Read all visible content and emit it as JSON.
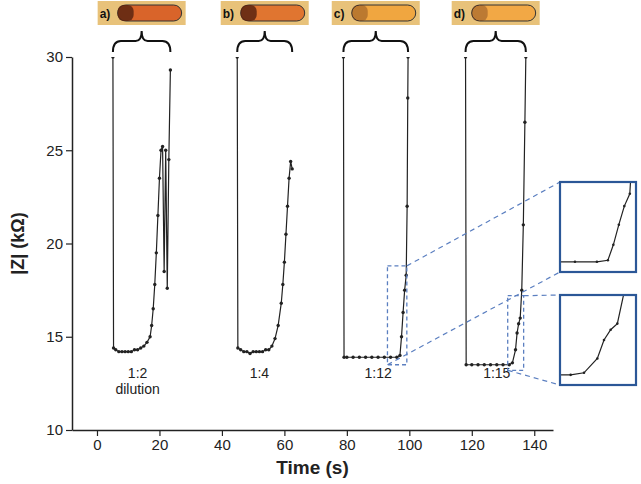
{
  "chart_data": {
    "type": "line",
    "x_label": "Time (s)",
    "y_label": "|Z| (kΩ)",
    "xlim": [
      -8,
      146
    ],
    "ylim": [
      10,
      30
    ],
    "xticks": [
      0,
      20,
      40,
      60,
      80,
      100,
      120,
      140
    ],
    "yticks": [
      10,
      15,
      20,
      25,
      30
    ],
    "grid": false,
    "color": "#222222",
    "marker": "circle",
    "line_style": "solid",
    "x": [
      5.1,
      5.3,
      6,
      7,
      8,
      9,
      10,
      11,
      12,
      13,
      14,
      15,
      16,
      17,
      17.5,
      18,
      18.5,
      19,
      19.5,
      20,
      20.5,
      21,
      21.5,
      22,
      22.5,
      23,
      23.5,
      null,
      44.9,
      45.1,
      46,
      47,
      48,
      49,
      50,
      51,
      52,
      53,
      54,
      55,
      56,
      57,
      58,
      59,
      59.5,
      60,
      60.5,
      61,
      61.5,
      62,
      62.5,
      null,
      78.9,
      79.1,
      80,
      82,
      84,
      86,
      88,
      90,
      92,
      94,
      96,
      97,
      97.5,
      98,
      98.5,
      99,
      99.3,
      99.5,
      99.6,
      null,
      118,
      118.2,
      120,
      122,
      124,
      126,
      128,
      130,
      132,
      133,
      134,
      134.5,
      135,
      135.5,
      136,
      136.5,
      137,
      137.3
    ],
    "values": [
      30,
      14.4,
      14.3,
      14.2,
      14.2,
      14.2,
      14.2,
      14.2,
      14.3,
      14.3,
      14.4,
      14.5,
      14.7,
      15.0,
      15.6,
      16.5,
      17.8,
      19.5,
      21.5,
      23.5,
      25.0,
      25.2,
      18.5,
      25.0,
      17.6,
      24.5,
      29.3,
      null,
      30,
      14.4,
      14.3,
      14.2,
      14.2,
      14.1,
      14.2,
      14.2,
      14.2,
      14.2,
      14.3,
      14.3,
      14.5,
      14.9,
      15.6,
      16.8,
      17.8,
      19.0,
      20.5,
      22.0,
      23.5,
      24.4,
      24.0,
      null,
      30,
      13.9,
      13.9,
      13.9,
      13.9,
      13.9,
      13.9,
      13.9,
      13.9,
      13.9,
      13.9,
      14.0,
      15.0,
      16.3,
      17.5,
      18.3,
      22.0,
      27.8,
      30,
      null,
      30,
      13.5,
      13.5,
      13.5,
      13.5,
      13.5,
      13.5,
      13.5,
      13.5,
      13.6,
      14.3,
      15.2,
      15.7,
      16.0,
      17.5,
      21.0,
      26.5,
      30
    ],
    "annotations": [
      {
        "text": "1:2\ndilution",
        "x": 13,
        "y": 12.8
      },
      {
        "text": "1:4",
        "x": 52,
        "y": 12.8
      },
      {
        "text": "1:12",
        "x": 90,
        "y": 12.8
      },
      {
        "text": "1:15",
        "x": 128,
        "y": 12.8
      }
    ],
    "images": [
      {
        "label": "a)",
        "color": "#d9642a"
      },
      {
        "label": "b)",
        "color": "#e07530"
      },
      {
        "label": "c)",
        "color": "#f0a640"
      },
      {
        "label": "d)",
        "color": "#f2a845"
      }
    ],
    "insets": [
      {
        "xlim": [
          93,
          99.2
        ],
        "ylim": [
          13.5,
          18.8
        ]
      },
      {
        "xlim": [
          131.5,
          136.6
        ],
        "ylim": [
          13.2,
          17.2
        ]
      }
    ]
  }
}
